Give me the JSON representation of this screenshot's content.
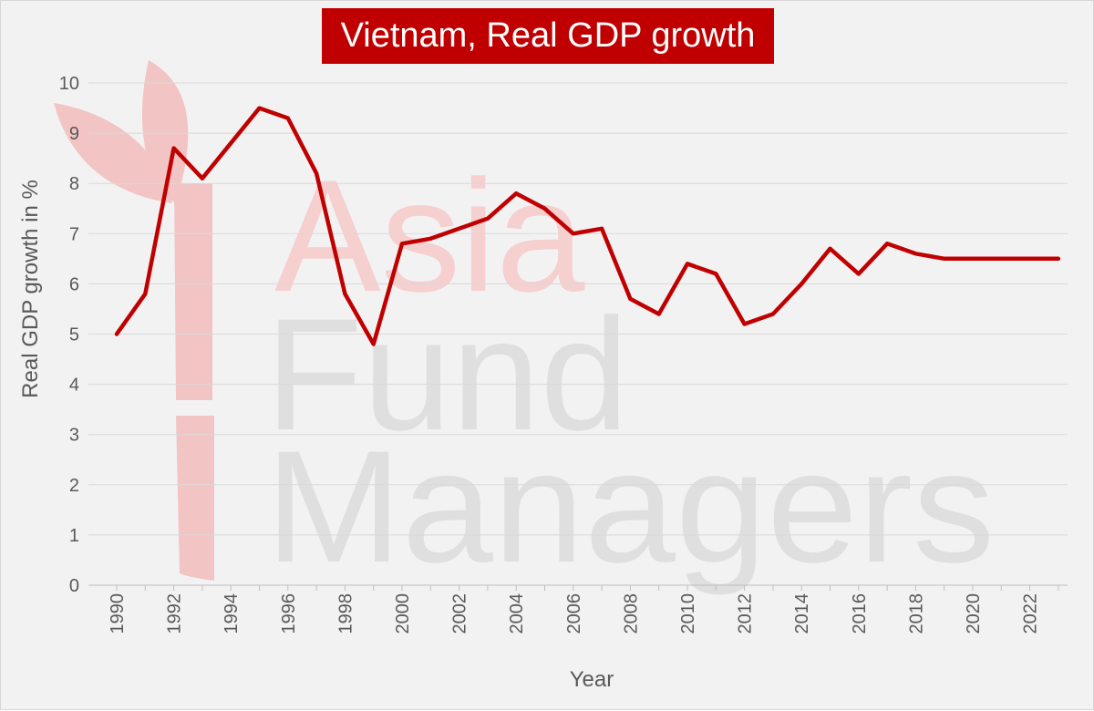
{
  "watermark": {
    "lines": [
      "Asia",
      "Fund",
      "Managers"
    ],
    "colors": {
      "asia": "#f6cfcf",
      "rest": "#e0dfe0",
      "logo": "#f2c4c4"
    }
  },
  "colors": {
    "line": "#c00000",
    "title_bg": "#c00000",
    "grid": "#d9d9d9",
    "background": "#f3f2f3"
  },
  "chart_data": {
    "type": "line",
    "title": "Vietnam, Real GDP growth",
    "xlabel": "Year",
    "ylabel": "Real GDP growth in %",
    "xlim": [
      1990,
      2023
    ],
    "ylim": [
      0,
      10
    ],
    "y_ticks": [
      0,
      1,
      2,
      3,
      4,
      5,
      6,
      7,
      8,
      9,
      10
    ],
    "x_tick_labels": [
      "1990",
      "1992",
      "1994",
      "1996",
      "1998",
      "2000",
      "2002",
      "2004",
      "2006",
      "2008",
      "2010",
      "2012",
      "2014",
      "2016",
      "2018",
      "2020",
      "2022"
    ],
    "grid": "horizontal",
    "legend": "none",
    "x": [
      1990,
      1991,
      1992,
      1993,
      1994,
      1995,
      1996,
      1997,
      1998,
      1999,
      2000,
      2001,
      2002,
      2003,
      2004,
      2005,
      2006,
      2007,
      2008,
      2009,
      2010,
      2011,
      2012,
      2013,
      2014,
      2015,
      2016,
      2017,
      2018,
      2019,
      2020,
      2021,
      2022,
      2023
    ],
    "values": [
      5.0,
      5.8,
      8.7,
      8.1,
      8.8,
      9.5,
      9.3,
      8.2,
      5.8,
      4.8,
      6.8,
      6.9,
      7.1,
      7.3,
      7.8,
      7.5,
      7.0,
      7.1,
      5.7,
      5.4,
      6.4,
      6.2,
      5.2,
      5.4,
      6.0,
      6.7,
      6.2,
      6.8,
      6.6,
      6.5,
      6.5,
      6.5,
      6.5,
      6.5
    ]
  }
}
